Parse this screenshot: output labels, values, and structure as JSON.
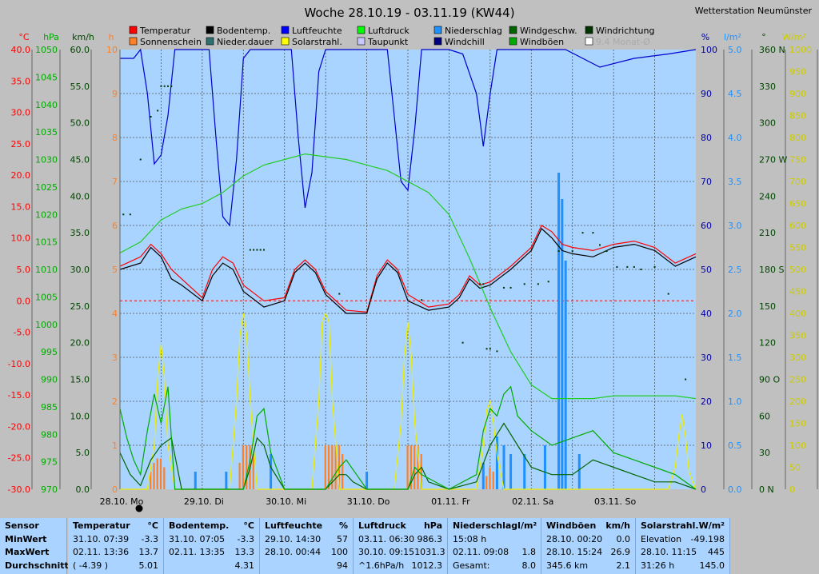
{
  "station": "Wetterstation Neumünster",
  "chart_data": {
    "type": "line",
    "title": "Woche 28.10.19 - 03.11.19 (KW44)",
    "days": [
      "28.10. Mo",
      "29.10. Di",
      "30.10. Mi",
      "31.10. Do",
      "01.11. Fr",
      "02.11. Sa",
      "03.11. So"
    ],
    "legend": [
      {
        "name": "Temperatur",
        "color": "#ff0000"
      },
      {
        "name": "Bodentemp.",
        "color": "#000000"
      },
      {
        "name": "Luftfeuchte",
        "color": "#0000ff"
      },
      {
        "name": "Luftdruck",
        "color": "#00ff00"
      },
      {
        "name": "Niederschlag",
        "color": "#1e90ff"
      },
      {
        "name": "Windgeschw.",
        "color": "#006400"
      },
      {
        "name": "Windrichtung",
        "color": "#003300"
      },
      {
        "name": "Sonnenschein",
        "color": "#ff7f27"
      },
      {
        "name": "Nieder.dauer",
        "color": "#2f6f6f"
      },
      {
        "name": "Solarstrahl.",
        "color": "#ffff00"
      },
      {
        "name": "Taupunkt",
        "color": "#c8c8ff"
      },
      {
        "name": "Windchill",
        "color": "#000080"
      },
      {
        "name": "Windböen",
        "color": "#00aa00"
      },
      {
        "name": "9.4 Monat-Ø",
        "color": "#ffffff"
      }
    ],
    "axes": {
      "temp": {
        "unit": "°C",
        "color": "#ff0000",
        "ticks": [
          "40.0",
          "35.0",
          "30.0",
          "25.0",
          "20.0",
          "15.0",
          "10.0",
          "5.0",
          "0.0",
          "-5.0",
          "-10.0",
          "-15.0",
          "-20.0",
          "-25.0",
          "-30.0"
        ]
      },
      "pressure": {
        "unit": "hPa",
        "color": "#00aa00",
        "ticks": [
          "1050",
          "1045",
          "1040",
          "1035",
          "1030",
          "1025",
          "1020",
          "1015",
          "1010",
          "1005",
          "1000",
          "995",
          "990",
          "985",
          "980",
          "975",
          "970"
        ]
      },
      "wind": {
        "unit": "km/h",
        "color": "#004400",
        "ticks": [
          "60.0",
          "55.0",
          "50.0",
          "45.0",
          "40.0",
          "35.0",
          "30.0",
          "25.0",
          "20.0",
          "15.0",
          "10.0",
          "5.0",
          "0.0"
        ]
      },
      "hours": {
        "unit": "h",
        "color": "#ff7f27",
        "ticks": [
          "10",
          "9",
          "8",
          "7",
          "6",
          "5",
          "4",
          "3",
          "2",
          "1",
          "0"
        ]
      },
      "humidity": {
        "unit": "%",
        "color": "#0000aa",
        "ticks": [
          "100",
          "90",
          "80",
          "70",
          "60",
          "50",
          "40",
          "30",
          "20",
          "10",
          "0"
        ]
      },
      "rain": {
        "unit": "l/m²",
        "color": "#1e90ff",
        "ticks": [
          "5.0",
          "4.5",
          "4.0",
          "3.5",
          "3.0",
          "2.5",
          "2.0",
          "1.5",
          "1.0",
          "0.5",
          "0.0"
        ]
      },
      "direction": {
        "unit": "°",
        "color": "#004400",
        "ticks": [
          "360 N",
          "330",
          "300",
          "270 W",
          "240",
          "210",
          "180 S",
          "150",
          "120",
          "90 O",
          "60",
          "30",
          "0 N"
        ]
      },
      "solar": {
        "unit": "W/m²",
        "color": "#cccc00",
        "ticks": [
          "1000",
          "950",
          "900",
          "850",
          "800",
          "750",
          "700",
          "650",
          "600",
          "550",
          "500",
          "450",
          "400",
          "350",
          "300",
          "250",
          "200",
          "150",
          "100",
          "50",
          "0"
        ]
      }
    },
    "series": [
      {
        "name": "Temperatur",
        "unit": "°C",
        "t": [
          0,
          6,
          9,
          12,
          15,
          18,
          24,
          27,
          30,
          33,
          36,
          42,
          48,
          51,
          54,
          57,
          60,
          66,
          72,
          75,
          78,
          81,
          84,
          90,
          96,
          99,
          102,
          105,
          108,
          114,
          120,
          123,
          126,
          129,
          132,
          138,
          144,
          150,
          156,
          162,
          168
        ],
        "values": [
          5.5,
          7.0,
          9.0,
          7.5,
          5.0,
          3.5,
          0.5,
          5.0,
          7.0,
          6.0,
          2.5,
          0.0,
          0.5,
          5.0,
          6.5,
          5.0,
          1.5,
          -1.5,
          -1.8,
          4.0,
          6.5,
          5.0,
          1.0,
          -1.0,
          -0.5,
          1.0,
          4.0,
          2.5,
          3.0,
          5.5,
          8.5,
          12.0,
          11.0,
          9.0,
          8.5,
          8.0,
          9.0,
          9.5,
          8.5,
          6.0,
          7.5
        ]
      },
      {
        "name": "Bodentemp.",
        "unit": "°C",
        "t": [
          0,
          6,
          9,
          12,
          15,
          18,
          24,
          27,
          30,
          33,
          36,
          42,
          48,
          51,
          54,
          57,
          60,
          66,
          72,
          75,
          78,
          81,
          84,
          90,
          96,
          99,
          102,
          105,
          108,
          114,
          120,
          123,
          126,
          129,
          132,
          138,
          144,
          150,
          156,
          162,
          168
        ],
        "values": [
          5.0,
          6.0,
          8.5,
          7.0,
          3.5,
          2.5,
          0.0,
          4.0,
          6.0,
          5.0,
          1.5,
          -1.0,
          0.0,
          4.5,
          6.0,
          4.5,
          1.0,
          -2.0,
          -2.0,
          3.5,
          6.0,
          4.5,
          0.0,
          -1.5,
          -1.0,
          0.5,
          3.5,
          2.0,
          2.5,
          5.0,
          8.0,
          11.5,
          10.0,
          8.0,
          7.5,
          7.0,
          8.5,
          9.0,
          8.0,
          5.5,
          7.0
        ]
      },
      {
        "name": "Luftfeuchte",
        "unit": "%",
        "t": [
          0,
          4,
          6,
          8,
          10,
          12,
          14,
          16,
          20,
          26,
          28,
          30,
          32,
          34,
          36,
          38,
          44,
          50,
          52,
          54,
          56,
          58,
          60,
          64,
          72,
          78,
          80,
          82,
          84,
          86,
          88,
          96,
          100,
          104,
          106,
          108,
          110,
          112,
          116,
          120,
          130,
          140,
          150,
          160,
          168
        ],
        "values": [
          98,
          98,
          100,
          90,
          74,
          76,
          85,
          100,
          100,
          100,
          80,
          62,
          60,
          75,
          98,
          100,
          100,
          100,
          80,
          64,
          72,
          95,
          100,
          100,
          100,
          100,
          85,
          70,
          68,
          82,
          100,
          100,
          99,
          90,
          78,
          90,
          100,
          100,
          100,
          100,
          100,
          96,
          98,
          99,
          100
        ]
      },
      {
        "name": "Luftdruck",
        "unit": "hPa",
        "t": [
          0,
          6,
          12,
          18,
          24,
          30,
          36,
          42,
          48,
          54,
          60,
          66,
          72,
          78,
          84,
          90,
          96,
          102,
          108,
          114,
          120,
          126,
          132,
          138,
          144,
          150,
          156,
          162,
          168
        ],
        "values": [
          1013,
          1015,
          1019,
          1021,
          1022,
          1024,
          1027,
          1029,
          1030,
          1031,
          1030.5,
          1030,
          1029,
          1028,
          1026,
          1024,
          1020,
          1012,
          1003,
          995,
          989,
          986.5,
          986.5,
          986.5,
          987,
          987,
          987,
          987,
          986.5
        ]
      },
      {
        "name": "Solarstrahl.",
        "unit": "W/m²",
        "t": [
          0,
          8,
          10,
          11,
          12,
          13,
          14,
          16,
          32,
          34,
          35,
          36,
          37,
          38,
          40,
          56,
          58,
          59,
          60,
          61,
          62,
          64,
          80,
          82,
          83,
          84,
          85,
          86,
          88,
          104,
          106,
          107,
          108,
          109,
          110,
          112,
          160,
          162,
          163,
          164,
          165,
          166,
          168
        ],
        "values": [
          0,
          0,
          100,
          250,
          330,
          250,
          100,
          0,
          0,
          200,
          350,
          400,
          350,
          200,
          0,
          0,
          200,
          380,
          400,
          380,
          200,
          0,
          0,
          150,
          300,
          380,
          300,
          150,
          0,
          0,
          100,
          180,
          200,
          150,
          80,
          0,
          0,
          50,
          120,
          170,
          120,
          40,
          0
        ]
      },
      {
        "name": "Windgeschw.",
        "unit": "km/h",
        "t": [
          0,
          3,
          6,
          9,
          12,
          15,
          18,
          24,
          36,
          38,
          40,
          42,
          44,
          48,
          60,
          62,
          64,
          66,
          68,
          72,
          84,
          86,
          88,
          90,
          96,
          104,
          108,
          112,
          116,
          120,
          126,
          132,
          138,
          144,
          150,
          156,
          162,
          168
        ],
        "values": [
          5,
          2,
          0.5,
          4,
          6,
          7,
          0,
          0,
          0,
          3,
          7,
          6,
          3,
          0,
          0,
          1,
          2,
          2,
          1,
          0,
          0,
          2,
          3,
          1,
          0,
          1,
          6,
          9,
          6,
          3,
          2,
          2,
          4,
          3,
          2,
          1,
          1,
          0
        ]
      },
      {
        "name": "Windböen",
        "unit": "km/h",
        "t": [
          0,
          2,
          4,
          6,
          8,
          10,
          12,
          14,
          16,
          20,
          36,
          38,
          40,
          42,
          44,
          48,
          60,
          64,
          66,
          72,
          84,
          86,
          88,
          96,
          104,
          106,
          108,
          110,
          112,
          114,
          116,
          120,
          126,
          132,
          138,
          144,
          150,
          156,
          162,
          168
        ],
        "values": [
          11,
          7,
          4,
          2,
          8,
          13,
          9,
          14,
          0,
          0,
          0,
          4,
          10,
          11,
          5,
          0,
          0,
          3,
          4,
          0,
          0,
          3,
          2,
          0,
          2,
          8,
          11,
          10,
          13,
          14,
          10,
          8,
          6,
          7,
          8,
          5,
          4,
          3,
          2,
          0
        ]
      },
      {
        "name": "Niederschlag",
        "unit": "l/m²",
        "t": [
          22,
          31,
          44,
          72,
          106,
          110,
          112,
          114,
          118,
          124,
          128,
          129,
          130,
          134
        ],
        "values": [
          0.2,
          0.2,
          0.4,
          0.2,
          0.3,
          0.6,
          0.5,
          0.4,
          0.4,
          0.5,
          3.6,
          3.3,
          2.6,
          0.4
        ]
      },
      {
        "name": "Sonnenschein",
        "unit": "h",
        "t": [
          9,
          10,
          11,
          12,
          13,
          35,
          36,
          37,
          38,
          39,
          60,
          61,
          62,
          63,
          64,
          65,
          84,
          85,
          86,
          87,
          88,
          107,
          108,
          109
        ],
        "values": [
          0.4,
          0.6,
          0.7,
          0.7,
          0.5,
          0.6,
          1.0,
          1.0,
          1.0,
          0.8,
          1.0,
          1.0,
          1.0,
          1.0,
          1.0,
          0.8,
          1.0,
          1.0,
          1.0,
          1.0,
          0.8,
          0.3,
          0.5,
          0.4
        ]
      },
      {
        "name": "Windrichtung",
        "unit": "°",
        "t": [
          1,
          3,
          6,
          9,
          11,
          12,
          13,
          14,
          15,
          38,
          39,
          40,
          41,
          42,
          64,
          88,
          100,
          105,
          106,
          107,
          108,
          110,
          112,
          114,
          118,
          122,
          125,
          128,
          132,
          135,
          138,
          140,
          142,
          145,
          148,
          150,
          152,
          156,
          160,
          165
        ],
        "values": [
          225,
          225,
          270,
          305,
          310,
          330,
          330,
          330,
          330,
          196,
          196,
          196,
          196,
          196,
          160,
          155,
          120,
          168,
          168,
          115,
          115,
          113,
          165,
          165,
          168,
          168,
          170,
          195,
          195,
          210,
          210,
          200,
          195,
          182,
          182,
          182,
          180,
          182,
          160,
          90
        ]
      }
    ]
  },
  "stats": {
    "row_labels": [
      "Sensor",
      "MinWert",
      "MaxWert",
      "Durchschnitt"
    ],
    "panels": [
      {
        "name": "Temperatur",
        "unit": "°C",
        "rows": [
          [
            "31.10. 07:39",
            "-3.3"
          ],
          [
            "02.11. 13:36",
            "13.7"
          ],
          [
            "( -4.39 )",
            "5.01"
          ]
        ]
      },
      {
        "name": "Bodentemp.",
        "unit": "°C",
        "rows": [
          [
            "31.10. 07:05",
            "-3.3"
          ],
          [
            "02.11. 13:35",
            "13.3"
          ],
          [
            "",
            "4.31"
          ]
        ]
      },
      {
        "name": "Luftfeuchte",
        "unit": "%",
        "rows": [
          [
            "29.10. 14:30",
            "57"
          ],
          [
            "28.10. 00:44",
            "100"
          ],
          [
            "",
            "94"
          ]
        ]
      },
      {
        "name": "Luftdruck",
        "unit": "hPa",
        "rows": [
          [
            "03.11. 06:30",
            "986.3"
          ],
          [
            "30.10. 09:15",
            "1031.3"
          ],
          [
            "^1.6hPa/h",
            "1012.3"
          ]
        ]
      },
      {
        "name": "Niederschlag",
        "unit": "l/m²",
        "rows": [
          [
            "15:08 h",
            ""
          ],
          [
            "02.11. 09:08",
            "1.8"
          ],
          [
            "Gesamt:",
            "8.0"
          ]
        ]
      },
      {
        "name": "Windböen",
        "unit": "km/h",
        "rows": [
          [
            "28.10. 00:20",
            "0.0"
          ],
          [
            "28.10. 15:24",
            "26.9"
          ],
          [
            "345.6 km",
            "2.1"
          ]
        ]
      },
      {
        "name": "Solarstrahl.",
        "unit": "W/m²",
        "rows": [
          [
            "Elevation",
            "-49.198"
          ],
          [
            "28.10. 11:15",
            "445"
          ],
          [
            "31:26 h",
            "145.0"
          ]
        ]
      }
    ]
  }
}
